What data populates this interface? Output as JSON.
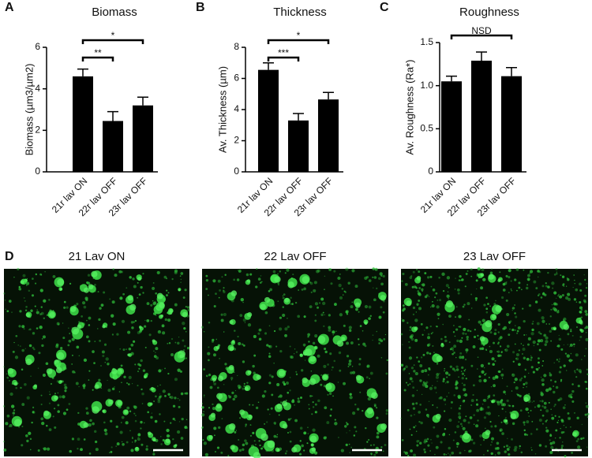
{
  "panel_labels": [
    "A",
    "B",
    "C",
    "D"
  ],
  "chart_data": [
    {
      "type": "bar",
      "title": "Biomass",
      "y_label": "Biomass (µm3/µm2)",
      "categories": [
        "21r lav ON",
        "22r lav OFF",
        "23r lav OFF"
      ],
      "values": [
        4.6,
        2.45,
        3.2
      ],
      "errors": [
        0.35,
        0.45,
        0.4
      ],
      "color": "#000000",
      "ylim": [
        0,
        6
      ],
      "yticks": [
        0,
        2,
        4,
        6
      ],
      "annotations": [
        {
          "text": "**",
          "from": 0,
          "to": 1
        },
        {
          "text": "*",
          "from": 0,
          "to": 2
        }
      ]
    },
    {
      "type": "bar",
      "title": "Thickness",
      "y_label": "Av. Thickness (µm)",
      "categories": [
        "21r lav ON",
        "22r lav OFF",
        "23r lav OFF"
      ],
      "values": [
        6.55,
        3.3,
        4.65
      ],
      "errors": [
        0.45,
        0.45,
        0.45
      ],
      "color": "#000000",
      "ylim": [
        0,
        8
      ],
      "yticks": [
        0,
        2,
        4,
        6,
        8
      ],
      "annotations": [
        {
          "text": "***",
          "from": 0,
          "to": 1
        },
        {
          "text": "*",
          "from": 0,
          "to": 2
        }
      ]
    },
    {
      "type": "bar",
      "title": "Roughness",
      "y_label": "Av. Roughness (Ra*)",
      "categories": [
        "21r lav ON",
        "22r lav OFF",
        "23r lav OFF"
      ],
      "values": [
        1.05,
        1.29,
        1.11
      ],
      "errors": [
        0.06,
        0.1,
        0.1
      ],
      "color": "#000000",
      "ylim": [
        0,
        1.5
      ],
      "yticks": [
        0,
        0.5,
        {
          "value": 1,
          "label": "1.0"
        },
        1.5
      ],
      "annotations": [
        {
          "text": "NSD",
          "from": 0,
          "to": 2
        }
      ]
    }
  ],
  "images": {
    "titles": [
      "21 Lav ON",
      "22 Lav OFF",
      "23 Lav OFF"
    ]
  }
}
